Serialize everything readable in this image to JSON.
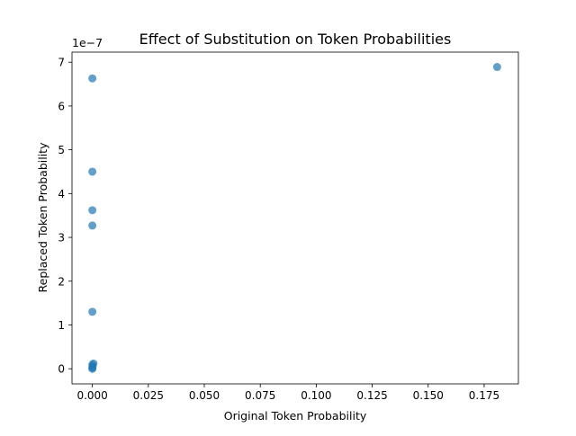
{
  "chart_data": {
    "type": "scatter",
    "title": "Effect of Substitution on Token Probabilities",
    "xlabel": "Original Token Probability",
    "ylabel": "Replaced Token Probability",
    "y_offset_label": "1e−7",
    "y_scale": 1e-07,
    "xlim": [
      -0.0091,
      0.1903
    ],
    "ylim": [
      -3.45e-08,
      7.23e-07
    ],
    "x_ticks": [
      0.0,
      0.025,
      0.05,
      0.075,
      0.1,
      0.125,
      0.15,
      0.175
    ],
    "x_tick_labels": [
      "0.000",
      "0.025",
      "0.050",
      "0.075",
      "0.100",
      "0.125",
      "0.150",
      "0.175"
    ],
    "y_ticks": [
      0,
      1e-07,
      2e-07,
      3e-07,
      4e-07,
      5e-07,
      6e-07,
      7e-07
    ],
    "y_tick_labels": [
      "0",
      "1",
      "2",
      "3",
      "4",
      "5",
      "6",
      "7"
    ],
    "grid": false,
    "marker_color": "#1f77b4",
    "marker_alpha": 0.7,
    "points": [
      {
        "x": 0.0,
        "y": 6.63e-07
      },
      {
        "x": 0.0,
        "y": 4.5e-07
      },
      {
        "x": 0.0,
        "y": 3.62e-07
      },
      {
        "x": 0.0,
        "y": 3.27e-07
      },
      {
        "x": 0.0,
        "y": 1.3e-07
      },
      {
        "x": 0.0005,
        "y": 1.2e-08
      },
      {
        "x": 0.0,
        "y": 9e-09
      },
      {
        "x": 0.0001,
        "y": 5e-09
      },
      {
        "x": 0.0,
        "y": 2e-09
      },
      {
        "x": 0.0,
        "y": 0.0
      },
      {
        "x": 0.1808,
        "y": 6.89e-07
      }
    ]
  }
}
